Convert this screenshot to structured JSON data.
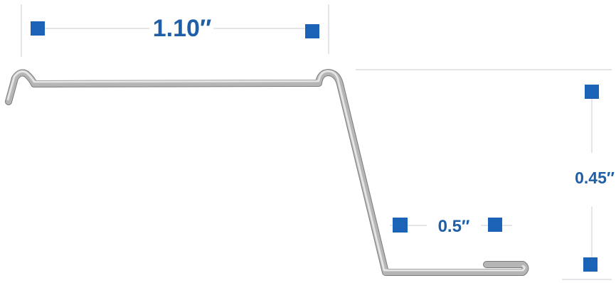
{
  "dimensions": {
    "top_width": {
      "label": "1.10″"
    },
    "height": {
      "label": "0.45″"
    },
    "bottom_width": {
      "label": "0.5″"
    }
  },
  "colors": {
    "dimension_text": "#1f5fa8",
    "marker": "#1a63b6",
    "extension_line": "#c9ced4",
    "profile_light": "#e4e4e4",
    "profile_dark": "#8a8a8a"
  }
}
